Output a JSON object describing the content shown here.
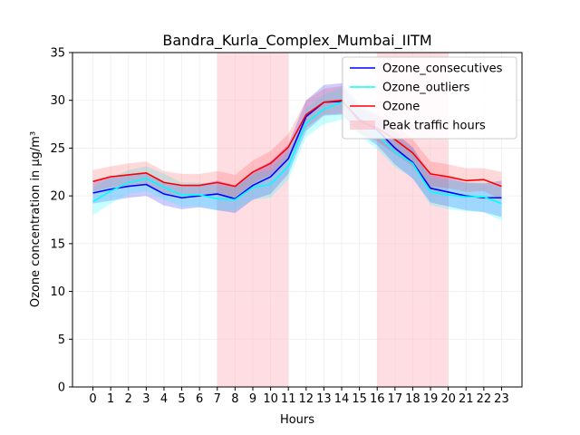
{
  "chart_data": {
    "type": "line",
    "title": "Bandra_Kurla_Complex_Mumbai_IITM",
    "xlabel": "Hours",
    "ylabel": "Ozone concentration in µg/m³",
    "x": [
      0,
      1,
      2,
      3,
      4,
      5,
      6,
      7,
      8,
      9,
      10,
      11,
      12,
      13,
      14,
      15,
      16,
      17,
      18,
      19,
      20,
      21,
      22,
      23
    ],
    "xlim": [
      -1.15,
      24.15
    ],
    "ylim": [
      0,
      35
    ],
    "yticks": [
      0,
      5,
      10,
      15,
      20,
      25,
      30,
      35
    ],
    "grid": true,
    "legend_position": "top-right",
    "series": [
      {
        "name": "Ozone_consecutives",
        "color": "#0000ff",
        "values": [
          20.3,
          20.7,
          21.0,
          21.2,
          20.2,
          19.8,
          20.0,
          20.2,
          19.7,
          21.1,
          22.0,
          23.9,
          28.3,
          29.8,
          29.9,
          28.0,
          26.9,
          25.0,
          23.5,
          20.8,
          20.4,
          20.0,
          19.8,
          19.8
        ],
        "lower": [
          19.2,
          19.5,
          19.8,
          20.0,
          19.0,
          18.6,
          18.8,
          18.5,
          18.2,
          19.6,
          20.2,
          22.3,
          26.8,
          28.4,
          28.5,
          26.6,
          25.3,
          23.3,
          21.8,
          19.3,
          18.9,
          18.5,
          18.3,
          17.8
        ],
        "upper": [
          21.4,
          21.9,
          22.2,
          22.4,
          21.4,
          21.0,
          21.2,
          21.6,
          21.1,
          22.6,
          23.6,
          25.4,
          30.0,
          31.6,
          31.8,
          29.7,
          28.4,
          26.6,
          25.1,
          22.2,
          21.9,
          21.4,
          21.3,
          21.6
        ]
      },
      {
        "name": "Ozone_outliers",
        "color": "#00ffff",
        "values": [
          19.4,
          20.5,
          21.4,
          21.8,
          20.9,
          20.1,
          20.1,
          19.7,
          19.6,
          20.9,
          21.2,
          23.1,
          27.6,
          29.1,
          29.8,
          27.8,
          26.4,
          24.6,
          23.4,
          20.4,
          20.1,
          19.9,
          19.9,
          19.2
        ],
        "lower": [
          18.0,
          19.2,
          20.2,
          20.5,
          19.6,
          18.9,
          18.9,
          18.5,
          18.4,
          19.6,
          19.8,
          21.7,
          26.2,
          27.5,
          28.0,
          26.3,
          24.9,
          23.0,
          21.9,
          19.0,
          18.6,
          18.4,
          18.3,
          17.4
        ],
        "upper": [
          20.9,
          21.9,
          22.7,
          23.1,
          22.3,
          21.4,
          21.4,
          21.1,
          20.9,
          22.3,
          22.7,
          24.6,
          29.1,
          30.6,
          31.3,
          29.3,
          27.9,
          26.2,
          24.9,
          21.9,
          21.6,
          21.4,
          21.4,
          20.9
        ]
      },
      {
        "name": "Ozone",
        "color": "#ff0000",
        "values": [
          21.5,
          22.0,
          22.2,
          22.4,
          21.4,
          21.1,
          21.1,
          21.4,
          21.0,
          22.5,
          23.4,
          25.1,
          28.5,
          29.8,
          30.0,
          27.8,
          27.1,
          25.9,
          24.5,
          22.3,
          22.0,
          21.6,
          21.7,
          21.0
        ],
        "lower": [
          20.4,
          20.9,
          21.1,
          21.3,
          20.3,
          20.0,
          20.0,
          20.2,
          19.9,
          21.3,
          22.2,
          23.8,
          27.1,
          28.5,
          28.6,
          26.5,
          25.7,
          24.4,
          23.1,
          21.0,
          20.8,
          20.4,
          20.5,
          19.6
        ],
        "upper": [
          22.7,
          23.1,
          23.4,
          23.6,
          22.6,
          22.3,
          22.3,
          22.6,
          22.2,
          23.7,
          24.7,
          26.5,
          30.0,
          31.2,
          31.5,
          29.2,
          28.5,
          27.4,
          25.9,
          23.6,
          23.3,
          22.9,
          22.9,
          22.5
        ]
      }
    ],
    "shaded_regions": [
      {
        "name": "Peak traffic hours",
        "color": "#ffb6c1",
        "ranges": [
          [
            7,
            11
          ],
          [
            16,
            20
          ]
        ]
      }
    ]
  }
}
